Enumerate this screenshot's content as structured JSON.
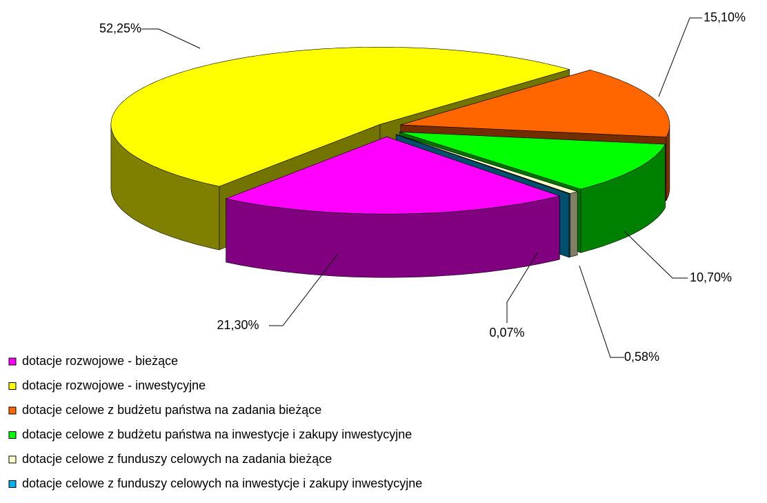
{
  "chart_data": {
    "type": "pie",
    "categories": [
      "dotacje rozwojowe - bieżące",
      "dotacje rozwojowe - inwestycyjne",
      "dotacje celowe z budżetu państwa na zadania bieżące",
      "dotacje celowe z budżetu państwa na inwestycje i zakupy inwestycyjne",
      "dotacje celowe z funduszy celowych na zadania bieżące",
      "dotacje celowe z funduszy celowych na inwestycje i zakupy inwestycyjne"
    ],
    "values": [
      21.3,
      52.25,
      15.1,
      10.7,
      0.58,
      0.07
    ],
    "value_labels": [
      "21,30%",
      "52,25%",
      "15,10%",
      "10,70%",
      "0,58%",
      "0,07%"
    ],
    "colors": [
      "#ff00ff",
      "#ffff00",
      "#ff6600",
      "#00ff00",
      "#ffffcc",
      "#00b0f0"
    ],
    "legend": "bottom-left",
    "three_d": true
  }
}
